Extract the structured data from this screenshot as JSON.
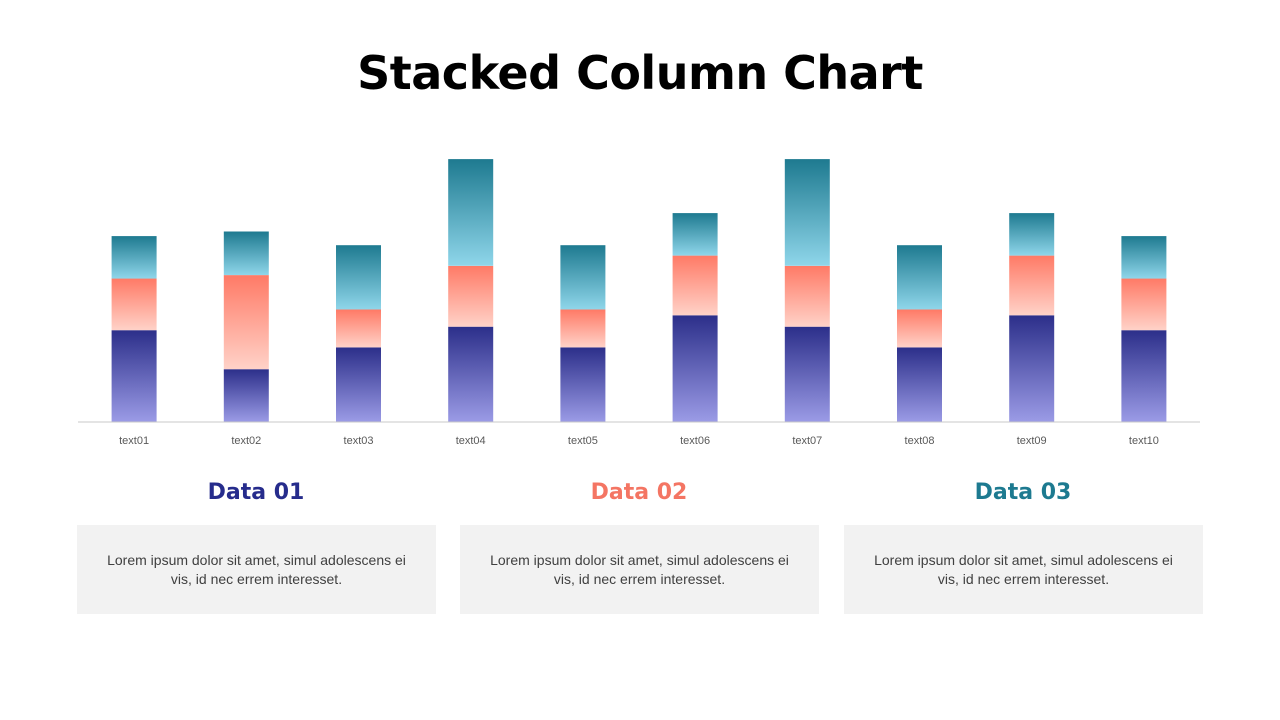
{
  "chart_data": {
    "type": "bar",
    "stacked": true,
    "title": "Stacked Column Chart",
    "categories": [
      "text01",
      "text02",
      "text03",
      "text04",
      "text05",
      "text06",
      "text07",
      "text08",
      "text09",
      "text10"
    ],
    "series": [
      {
        "name": "Data 01",
        "values": [
          80,
          46,
          65,
          83,
          65,
          93,
          83,
          65,
          93,
          80
        ],
        "color_top": "#2c2f8a",
        "color_bottom": "#9b9be6"
      },
      {
        "name": "Data 02",
        "values": [
          45,
          82,
          33,
          53,
          33,
          52,
          53,
          33,
          52,
          45
        ],
        "color_top": "#ff7a66",
        "color_bottom": "#ffd2c8"
      },
      {
        "name": "Data 03",
        "values": [
          37,
          38,
          56,
          93,
          56,
          37,
          93,
          56,
          37,
          37
        ],
        "color_top": "#1e7a90",
        "color_bottom": "#8fd6ea"
      }
    ],
    "ylim": [
      0,
      230
    ],
    "grid": false,
    "legend": "bottom"
  },
  "legend": [
    {
      "label": "Data 01",
      "color": "#262c8c",
      "text": "Lorem ipsum dolor sit amet, simul adolescens ei vis, id nec errem interesset."
    },
    {
      "label": "Data 02",
      "color": "#f47563",
      "text": "Lorem ipsum dolor sit amet, simul adolescens ei vis, id nec errem interesset."
    },
    {
      "label": "Data 03",
      "color": "#1d7a90",
      "text": "Lorem ipsum dolor sit amet, simul adolescens ei vis, id nec errem interesset."
    }
  ]
}
